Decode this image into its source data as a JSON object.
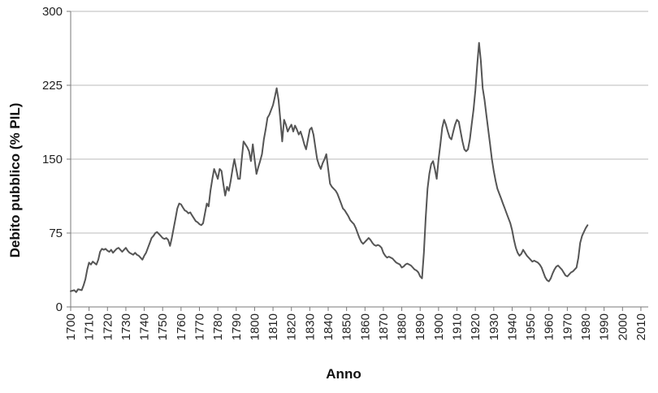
{
  "chart_data": {
    "type": "line",
    "title": "",
    "xlabel": "Anno",
    "ylabel": "Debito pubblico (% PIL)",
    "xlim": [
      1700,
      2014
    ],
    "ylim": [
      0,
      300
    ],
    "y_ticks": [
      0,
      75,
      150,
      225,
      300
    ],
    "x_ticks": [
      1700,
      1710,
      1720,
      1730,
      1740,
      1750,
      1760,
      1770,
      1780,
      1790,
      1800,
      1810,
      1820,
      1830,
      1840,
      1850,
      1860,
      1870,
      1880,
      1890,
      1900,
      1910,
      1920,
      1930,
      1940,
      1950,
      1960,
      1970,
      1980,
      1990,
      2000,
      2010
    ],
    "grid": "horizontal",
    "legend": "none",
    "colors": {
      "line": "#555555",
      "grid": "#bbbbbb",
      "axis": "#7a7a7a"
    },
    "series": [
      {
        "points": [
          [
            1700,
            16
          ],
          [
            1702,
            17
          ],
          [
            1703,
            15
          ],
          [
            1704,
            18
          ],
          [
            1706,
            17
          ],
          [
            1707,
            22
          ],
          [
            1708,
            28
          ],
          [
            1709,
            38
          ],
          [
            1710,
            45
          ],
          [
            1711,
            43
          ],
          [
            1712,
            46
          ],
          [
            1714,
            43
          ],
          [
            1715,
            48
          ],
          [
            1716,
            56
          ],
          [
            1717,
            59
          ],
          [
            1718,
            58
          ],
          [
            1719,
            59
          ],
          [
            1720,
            57
          ],
          [
            1721,
            56
          ],
          [
            1722,
            58
          ],
          [
            1723,
            55
          ],
          [
            1724,
            57
          ],
          [
            1725,
            59
          ],
          [
            1726,
            60
          ],
          [
            1727,
            58
          ],
          [
            1728,
            56
          ],
          [
            1729,
            58
          ],
          [
            1730,
            60
          ],
          [
            1731,
            57
          ],
          [
            1732,
            55
          ],
          [
            1733,
            54
          ],
          [
            1734,
            53
          ],
          [
            1735,
            55
          ],
          [
            1736,
            53
          ],
          [
            1737,
            52
          ],
          [
            1738,
            50
          ],
          [
            1739,
            48
          ],
          [
            1740,
            52
          ],
          [
            1741,
            55
          ],
          [
            1742,
            60
          ],
          [
            1743,
            65
          ],
          [
            1744,
            70
          ],
          [
            1745,
            72
          ],
          [
            1746,
            75
          ],
          [
            1747,
            76
          ],
          [
            1748,
            74
          ],
          [
            1749,
            72
          ],
          [
            1750,
            70
          ],
          [
            1751,
            69
          ],
          [
            1752,
            70
          ],
          [
            1753,
            68
          ],
          [
            1754,
            62
          ],
          [
            1755,
            70
          ],
          [
            1756,
            80
          ],
          [
            1757,
            90
          ],
          [
            1758,
            100
          ],
          [
            1759,
            105
          ],
          [
            1760,
            104
          ],
          [
            1761,
            101
          ],
          [
            1762,
            98
          ],
          [
            1763,
            97
          ],
          [
            1764,
            95
          ],
          [
            1765,
            96
          ],
          [
            1766,
            93
          ],
          [
            1767,
            90
          ],
          [
            1768,
            87
          ],
          [
            1769,
            86
          ],
          [
            1770,
            84
          ],
          [
            1771,
            83
          ],
          [
            1772,
            85
          ],
          [
            1773,
            95
          ],
          [
            1774,
            105
          ],
          [
            1775,
            102
          ],
          [
            1776,
            118
          ],
          [
            1777,
            130
          ],
          [
            1778,
            140
          ],
          [
            1779,
            135
          ],
          [
            1780,
            130
          ],
          [
            1781,
            140
          ],
          [
            1782,
            138
          ],
          [
            1783,
            125
          ],
          [
            1784,
            113
          ],
          [
            1785,
            122
          ],
          [
            1786,
            118
          ],
          [
            1787,
            128
          ],
          [
            1788,
            140
          ],
          [
            1789,
            150
          ],
          [
            1790,
            140
          ],
          [
            1791,
            130
          ],
          [
            1792,
            130
          ],
          [
            1793,
            150
          ],
          [
            1794,
            168
          ],
          [
            1795,
            165
          ],
          [
            1796,
            162
          ],
          [
            1797,
            158
          ],
          [
            1798,
            148
          ],
          [
            1799,
            165
          ],
          [
            1800,
            150
          ],
          [
            1801,
            135
          ],
          [
            1802,
            142
          ],
          [
            1803,
            148
          ],
          [
            1804,
            155
          ],
          [
            1805,
            170
          ],
          [
            1806,
            180
          ],
          [
            1807,
            192
          ],
          [
            1808,
            195
          ],
          [
            1809,
            200
          ],
          [
            1810,
            205
          ],
          [
            1811,
            213
          ],
          [
            1812,
            222
          ],
          [
            1813,
            210
          ],
          [
            1814,
            190
          ],
          [
            1815,
            168
          ],
          [
            1816,
            190
          ],
          [
            1817,
            185
          ],
          [
            1818,
            178
          ],
          [
            1819,
            182
          ],
          [
            1820,
            185
          ],
          [
            1821,
            178
          ],
          [
            1822,
            184
          ],
          [
            1823,
            180
          ],
          [
            1824,
            175
          ],
          [
            1825,
            178
          ],
          [
            1826,
            172
          ],
          [
            1827,
            165
          ],
          [
            1828,
            160
          ],
          [
            1829,
            170
          ],
          [
            1830,
            180
          ],
          [
            1831,
            182
          ],
          [
            1832,
            175
          ],
          [
            1833,
            162
          ],
          [
            1834,
            150
          ],
          [
            1835,
            144
          ],
          [
            1836,
            140
          ],
          [
            1837,
            146
          ],
          [
            1838,
            150
          ],
          [
            1839,
            155
          ],
          [
            1840,
            140
          ],
          [
            1841,
            125
          ],
          [
            1842,
            122
          ],
          [
            1843,
            120
          ],
          [
            1844,
            118
          ],
          [
            1845,
            115
          ],
          [
            1846,
            110
          ],
          [
            1847,
            105
          ],
          [
            1848,
            100
          ],
          [
            1849,
            98
          ],
          [
            1850,
            95
          ],
          [
            1851,
            92
          ],
          [
            1852,
            88
          ],
          [
            1853,
            86
          ],
          [
            1854,
            84
          ],
          [
            1855,
            80
          ],
          [
            1856,
            75
          ],
          [
            1857,
            70
          ],
          [
            1858,
            66
          ],
          [
            1859,
            64
          ],
          [
            1860,
            66
          ],
          [
            1861,
            68
          ],
          [
            1862,
            70
          ],
          [
            1863,
            68
          ],
          [
            1864,
            65
          ],
          [
            1865,
            63
          ],
          [
            1866,
            62
          ],
          [
            1867,
            63
          ],
          [
            1868,
            62
          ],
          [
            1869,
            60
          ],
          [
            1870,
            55
          ],
          [
            1871,
            52
          ],
          [
            1872,
            50
          ],
          [
            1873,
            51
          ],
          [
            1874,
            50
          ],
          [
            1875,
            49
          ],
          [
            1876,
            47
          ],
          [
            1877,
            45
          ],
          [
            1878,
            44
          ],
          [
            1879,
            43
          ],
          [
            1880,
            40
          ],
          [
            1881,
            41
          ],
          [
            1882,
            43
          ],
          [
            1883,
            44
          ],
          [
            1884,
            43
          ],
          [
            1885,
            42
          ],
          [
            1886,
            40
          ],
          [
            1887,
            38
          ],
          [
            1888,
            37
          ],
          [
            1889,
            35
          ],
          [
            1890,
            31
          ],
          [
            1891,
            29
          ],
          [
            1892,
            55
          ],
          [
            1893,
            90
          ],
          [
            1894,
            120
          ],
          [
            1895,
            135
          ],
          [
            1896,
            145
          ],
          [
            1897,
            148
          ],
          [
            1898,
            140
          ],
          [
            1899,
            130
          ],
          [
            1900,
            150
          ],
          [
            1901,
            165
          ],
          [
            1902,
            182
          ],
          [
            1903,
            190
          ],
          [
            1904,
            185
          ],
          [
            1905,
            178
          ],
          [
            1906,
            172
          ],
          [
            1907,
            170
          ],
          [
            1908,
            178
          ],
          [
            1909,
            185
          ],
          [
            1910,
            190
          ],
          [
            1911,
            188
          ],
          [
            1912,
            178
          ],
          [
            1913,
            168
          ],
          [
            1914,
            160
          ],
          [
            1915,
            158
          ],
          [
            1916,
            160
          ],
          [
            1917,
            170
          ],
          [
            1918,
            185
          ],
          [
            1919,
            200
          ],
          [
            1920,
            220
          ],
          [
            1921,
            245
          ],
          [
            1922,
            268
          ],
          [
            1923,
            250
          ],
          [
            1924,
            222
          ],
          [
            1925,
            210
          ],
          [
            1926,
            195
          ],
          [
            1927,
            180
          ],
          [
            1928,
            165
          ],
          [
            1929,
            150
          ],
          [
            1930,
            138
          ],
          [
            1931,
            128
          ],
          [
            1932,
            120
          ],
          [
            1933,
            115
          ],
          [
            1934,
            110
          ],
          [
            1935,
            105
          ],
          [
            1936,
            100
          ],
          [
            1937,
            95
          ],
          [
            1938,
            90
          ],
          [
            1939,
            85
          ],
          [
            1940,
            78
          ],
          [
            1941,
            68
          ],
          [
            1942,
            60
          ],
          [
            1943,
            55
          ],
          [
            1944,
            52
          ],
          [
            1945,
            54
          ],
          [
            1946,
            58
          ],
          [
            1947,
            55
          ],
          [
            1948,
            52
          ],
          [
            1949,
            50
          ],
          [
            1950,
            48
          ],
          [
            1951,
            46
          ],
          [
            1952,
            47
          ],
          [
            1953,
            46
          ],
          [
            1954,
            45
          ],
          [
            1955,
            43
          ],
          [
            1956,
            40
          ],
          [
            1957,
            35
          ],
          [
            1958,
            30
          ],
          [
            1959,
            27
          ],
          [
            1960,
            26
          ],
          [
            1961,
            29
          ],
          [
            1962,
            34
          ],
          [
            1963,
            38
          ],
          [
            1964,
            41
          ],
          [
            1965,
            42
          ],
          [
            1966,
            40
          ],
          [
            1967,
            38
          ],
          [
            1968,
            35
          ],
          [
            1969,
            32
          ],
          [
            1970,
            31
          ],
          [
            1971,
            33
          ],
          [
            1972,
            35
          ],
          [
            1973,
            36
          ],
          [
            1974,
            38
          ],
          [
            1975,
            40
          ],
          [
            1976,
            50
          ],
          [
            1977,
            65
          ],
          [
            1978,
            72
          ],
          [
            1979,
            76
          ],
          [
            1980,
            80
          ],
          [
            1981,
            83
          ]
        ]
      }
    ]
  }
}
